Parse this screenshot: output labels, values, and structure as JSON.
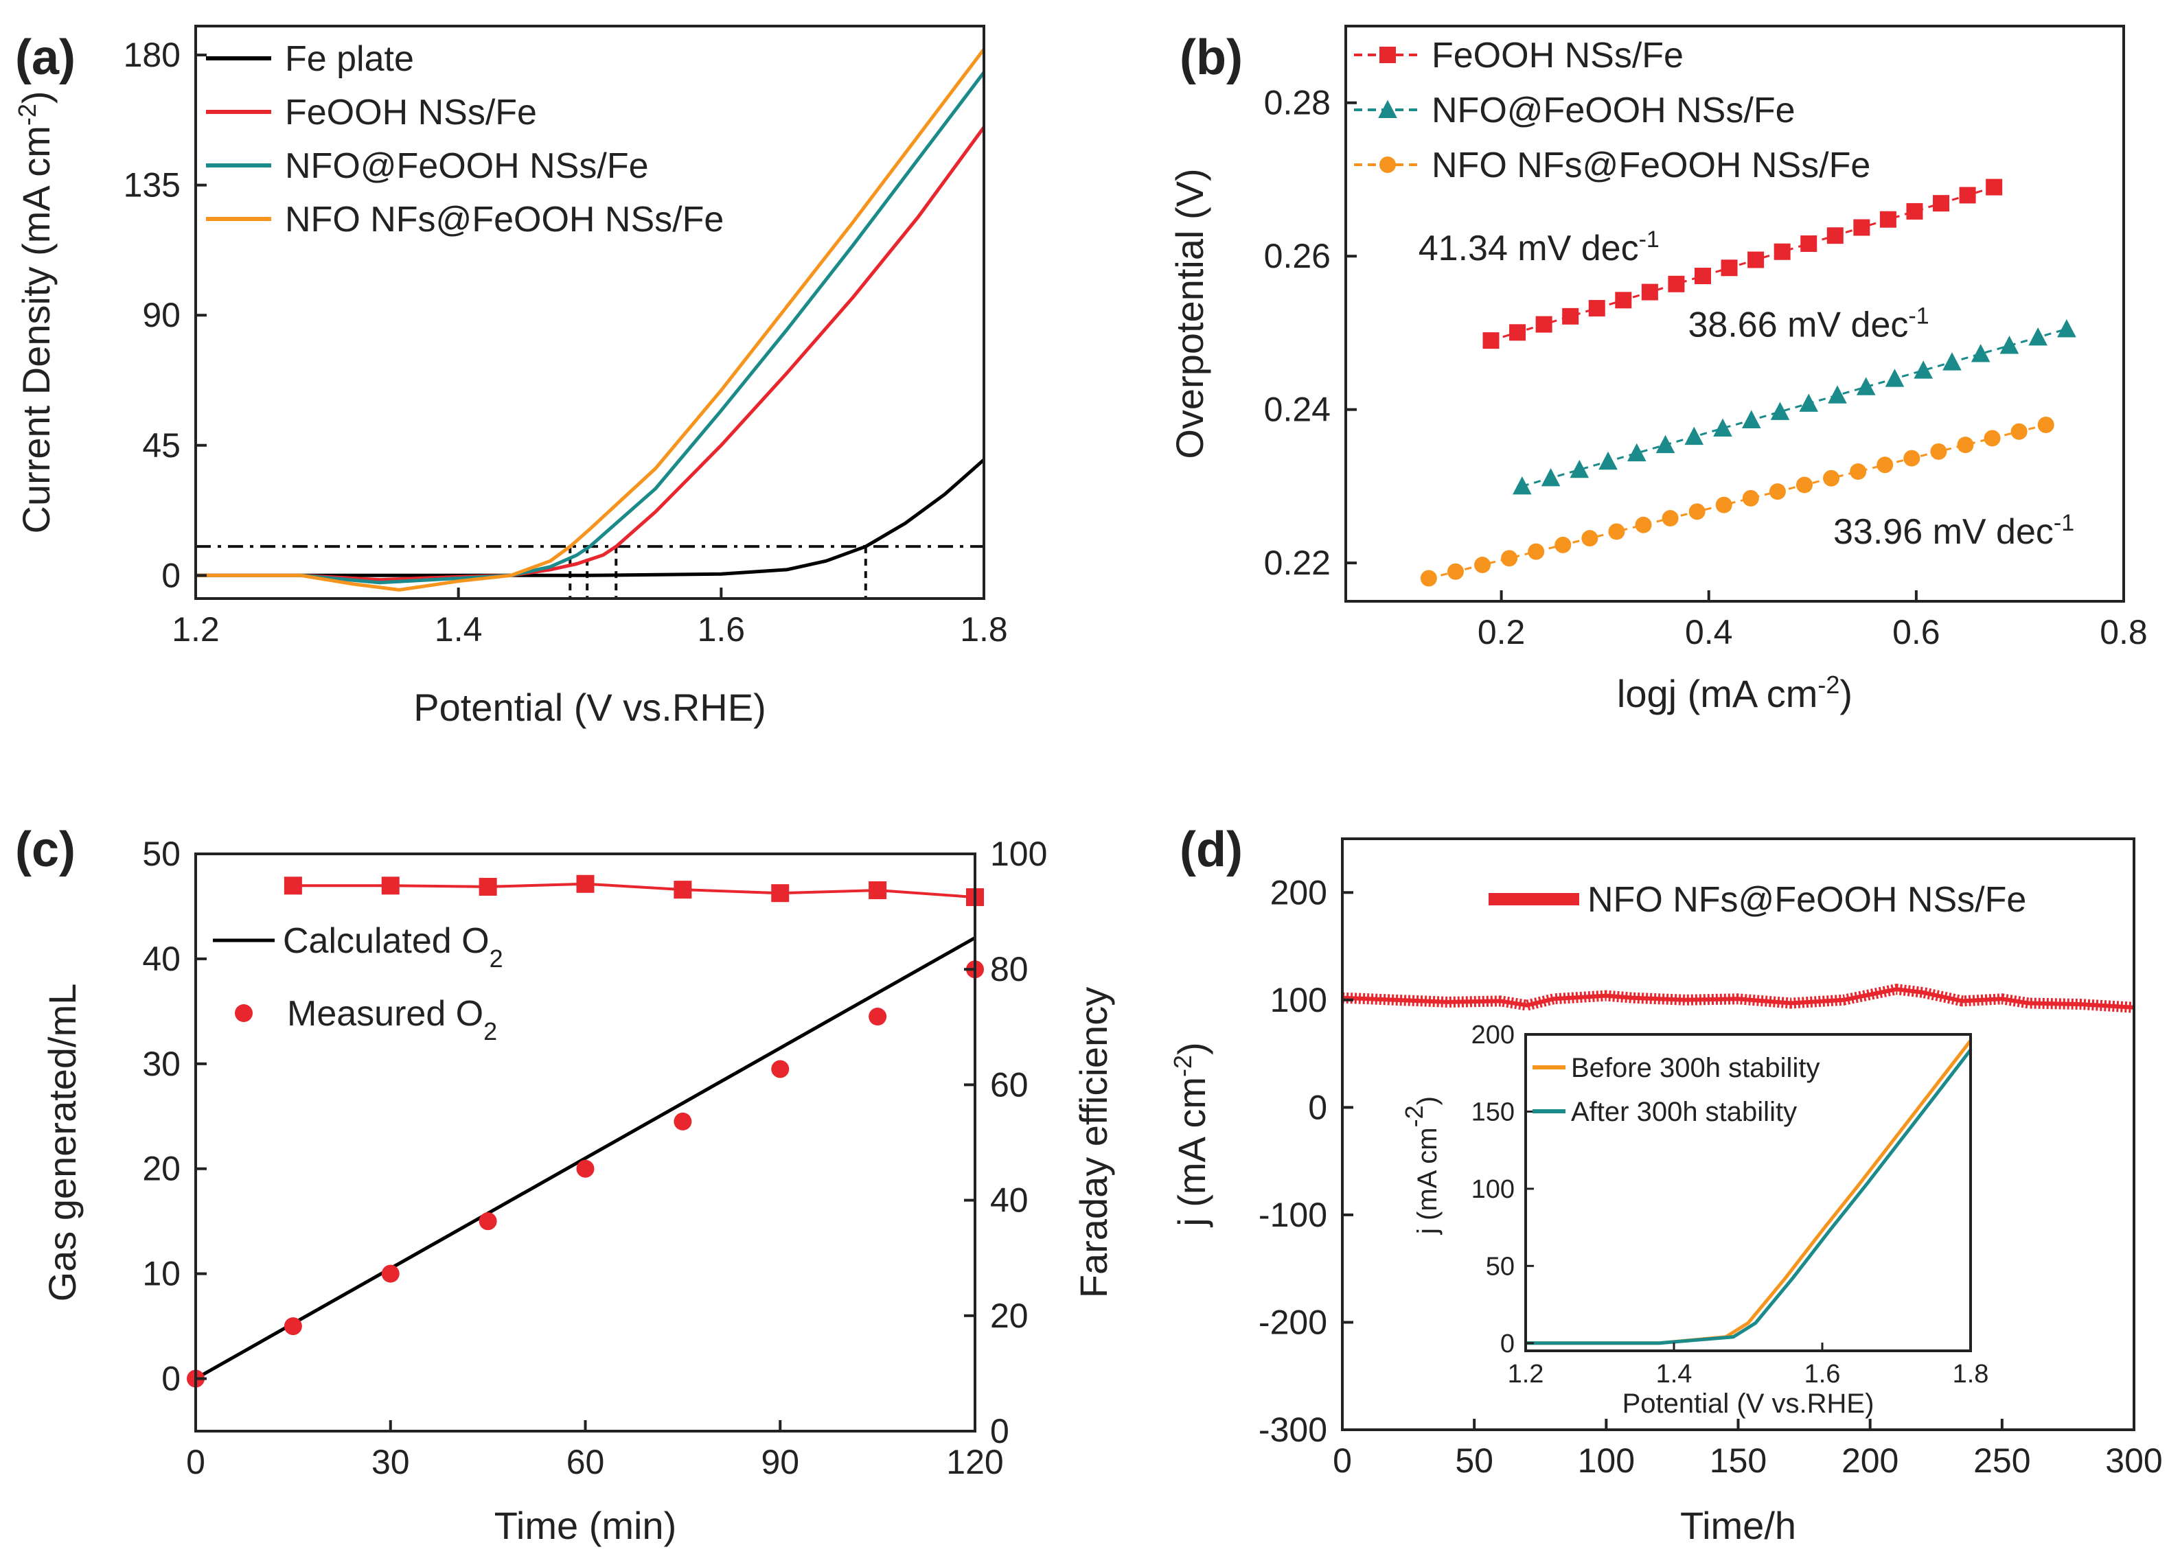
{
  "figure": {
    "background": "#ffffff"
  },
  "chart_data": [
    {
      "id": "a",
      "panel_label": "(a)",
      "type": "line",
      "xlabel": "Potential (V vs.RHE)",
      "ylabel": "Current Density (mA cm",
      "ylabel_sup": "-2",
      "ylabel_tail": ")",
      "xlim": [
        1.2,
        1.8
      ],
      "ylim": [
        -8,
        190
      ],
      "xticks": [
        1.2,
        1.4,
        1.6,
        1.8
      ],
      "xtick_labels": [
        "1.2",
        "1.4",
        "1.6",
        "1.8"
      ],
      "yticks": [
        0,
        45,
        90,
        135,
        180
      ],
      "ytick_labels": [
        "0",
        "45",
        "90",
        "135",
        "180"
      ],
      "reference_line_y": 10,
      "reference_dropdowns_x": [
        1.485,
        1.498,
        1.52,
        1.71
      ],
      "legend_position": "top-left",
      "series": [
        {
          "name": "Fe plate",
          "color": "#000000",
          "x": [
            1.2,
            1.5,
            1.6,
            1.65,
            1.68,
            1.71,
            1.74,
            1.77,
            1.8
          ],
          "y": [
            0,
            0,
            0.5,
            2,
            5,
            10,
            18,
            28,
            40
          ]
        },
        {
          "name": "FeOOH NSs/Fe",
          "color": "#e8262e",
          "x": [
            1.2,
            1.28,
            1.34,
            1.4,
            1.44,
            1.47,
            1.49,
            1.51,
            1.52,
            1.55,
            1.6,
            1.65,
            1.7,
            1.75,
            1.8
          ],
          "y": [
            0,
            0,
            -1.5,
            -0.5,
            0,
            2,
            4,
            7,
            10,
            22,
            45,
            70,
            96,
            124,
            155
          ]
        },
        {
          "name": "NFO@FeOOH NSs/Fe",
          "color": "#1a8a8a",
          "x": [
            1.2,
            1.28,
            1.34,
            1.4,
            1.44,
            1.47,
            1.49,
            1.5,
            1.55,
            1.6,
            1.65,
            1.7,
            1.75,
            1.8
          ],
          "y": [
            0,
            0,
            -2.5,
            -1,
            0,
            3,
            7,
            10,
            30,
            57,
            85,
            114,
            144,
            174
          ]
        },
        {
          "name": "NFO NFs@FeOOH NSs/Fe",
          "color": "#f7941d",
          "x": [
            1.2,
            1.28,
            1.32,
            1.355,
            1.4,
            1.44,
            1.47,
            1.485,
            1.5,
            1.55,
            1.6,
            1.65,
            1.7,
            1.75,
            1.8
          ],
          "y": [
            0,
            0,
            -3,
            -5,
            -2,
            0,
            5,
            10,
            16,
            37,
            64,
            93,
            122,
            152,
            182
          ]
        }
      ]
    },
    {
      "id": "b",
      "panel_label": "(b)",
      "type": "scatter",
      "xlabel": "logj (mA cm",
      "xlabel_sup": "-2",
      "xlabel_tail": ")",
      "ylabel": "Overpotential (V)",
      "xlim": [
        0.05,
        0.8
      ],
      "ylim": [
        0.215,
        0.29
      ],
      "xticks": [
        0.2,
        0.4,
        0.6,
        0.8
      ],
      "xtick_labels": [
        "0.2",
        "0.4",
        "0.6",
        "0.8"
      ],
      "yticks": [
        0.22,
        0.24,
        0.26,
        0.28
      ],
      "ytick_labels": [
        "0.22",
        "0.24",
        "0.26",
        "0.28"
      ],
      "legend_position": "top-left",
      "series": [
        {
          "name": "FeOOH NSs/Fe",
          "color": "#e8262e",
          "marker": "square",
          "x_start": 0.19,
          "x_end": 0.675,
          "y_start": 0.249,
          "y_end": 0.269,
          "points": 20
        },
        {
          "name": "NFO@FeOOH NSs/Fe",
          "color": "#1a8a8a",
          "marker": "triangle",
          "x_start": 0.22,
          "x_end": 0.745,
          "y_start": 0.23,
          "y_end": 0.2505,
          "points": 20
        },
        {
          "name": "NFO NFs@FeOOH NSs/Fe",
          "color": "#f7941d",
          "marker": "circle",
          "x_start": 0.13,
          "x_end": 0.725,
          "y_start": 0.218,
          "y_end": 0.238,
          "points": 24
        }
      ],
      "annotations": [
        {
          "text": "41.34 mV dec",
          "sup": "-1",
          "x": 0.12,
          "y": 0.2595
        },
        {
          "text": "38.66 mV dec",
          "sup": "-1",
          "x": 0.38,
          "y": 0.2495
        },
        {
          "text": "33.96 mV dec",
          "sup": "-1",
          "x": 0.52,
          "y": 0.2225
        }
      ]
    },
    {
      "id": "c",
      "panel_label": "(c)",
      "type": "scatter",
      "xlabel": "Time (min)",
      "ylabel": "Gas generated/mL",
      "ylabel_right": "Faraday efficiency",
      "xlim": [
        0,
        120
      ],
      "ylim": [
        -5,
        50
      ],
      "ylim_right": [
        0,
        100
      ],
      "xticks": [
        0,
        30,
        60,
        90,
        120
      ],
      "xtick_labels": [
        "0",
        "30",
        "60",
        "90",
        "120"
      ],
      "yticks": [
        0,
        10,
        20,
        30,
        40,
        50
      ],
      "ytick_labels": [
        "0",
        "10",
        "20",
        "30",
        "40",
        "50"
      ],
      "yticks_right": [
        0,
        20,
        40,
        60,
        80,
        100
      ],
      "ytick_labels_right": [
        "0",
        "20",
        "40",
        "60",
        "80",
        "100"
      ],
      "legend_position": "top-left",
      "series": [
        {
          "name": "Calculated O",
          "sub": "2",
          "kind": "line",
          "color": "#000000",
          "x": [
            0,
            120
          ],
          "y": [
            0,
            42
          ]
        },
        {
          "name": "Measured O",
          "sub": "2",
          "kind": "points",
          "color": "#e8262e",
          "x": [
            0,
            15,
            30,
            45,
            60,
            75,
            90,
            105,
            120
          ],
          "y": [
            0,
            5,
            10,
            15,
            20,
            24.5,
            29.5,
            34.5,
            39
          ]
        },
        {
          "name": "Faraday efficiency",
          "kind": "line-square",
          "axis": "right",
          "color": "#e8262e",
          "x": [
            15,
            30,
            45,
            60,
            75,
            90,
            105,
            120
          ],
          "y": [
            94.5,
            94.5,
            94.3,
            94.8,
            93.8,
            93.2,
            93.7,
            92.5
          ]
        }
      ]
    },
    {
      "id": "d",
      "panel_label": "(d)",
      "type": "line",
      "xlabel": "Time/h",
      "ylabel": "j (mA cm",
      "ylabel_sup": "-2",
      "ylabel_tail": ")",
      "xlim": [
        0,
        300
      ],
      "ylim": [
        -300,
        250
      ],
      "xticks": [
        0,
        50,
        100,
        150,
        200,
        250,
        300
      ],
      "xtick_labels": [
        "0",
        "50",
        "100",
        "150",
        "200",
        "250",
        "300"
      ],
      "yticks": [
        -300,
        -200,
        -100,
        0,
        100,
        200
      ],
      "ytick_labels": [
        "-300",
        "-200",
        "-100",
        "0",
        "100",
        "200"
      ],
      "legend_position": "top-right",
      "series": [
        {
          "name": "NFO NFs@FeOOH NSs/Fe",
          "color": "#e8262e",
          "x": [
            0,
            20,
            40,
            60,
            70,
            80,
            100,
            110,
            130,
            150,
            170,
            190,
            200,
            210,
            220,
            235,
            250,
            260,
            280,
            300
          ],
          "y": [
            102,
            100,
            98,
            99,
            95,
            101,
            104,
            102,
            100,
            101,
            97,
            100,
            105,
            110,
            107,
            99,
            101,
            97,
            96,
            93
          ]
        }
      ],
      "inset": {
        "type": "line",
        "xlabel": "Potential (V vs.RHE)",
        "ylabel": "j (mA cm",
        "ylabel_sup": "-2",
        "ylabel_tail": ")",
        "xlim": [
          1.2,
          1.8
        ],
        "ylim": [
          -5,
          200
        ],
        "xticks": [
          1.2,
          1.4,
          1.6,
          1.8
        ],
        "xtick_labels": [
          "1.2",
          "1.4",
          "1.6",
          "1.8"
        ],
        "yticks": [
          0,
          50,
          100,
          150,
          200
        ],
        "ytick_labels": [
          "0",
          "50",
          "100",
          "150",
          "200"
        ],
        "legend_position": "top-left",
        "series": [
          {
            "name": "Before 300h stability",
            "color": "#f7941d",
            "x": [
              1.2,
              1.38,
              1.47,
              1.5,
              1.55,
              1.6,
              1.65,
              1.7,
              1.75,
              1.8
            ],
            "y": [
              0,
              0,
              4,
              13,
              42,
              73,
              103,
              134,
              165,
              196
            ]
          },
          {
            "name": "After 300h stability",
            "color": "#1a8a8a",
            "x": [
              1.2,
              1.38,
              1.48,
              1.51,
              1.56,
              1.61,
              1.66,
              1.71,
              1.76,
              1.8
            ],
            "y": [
              0,
              0,
              4,
              13,
              42,
              73,
              103,
              134,
              165,
              190
            ]
          }
        ]
      }
    }
  ]
}
